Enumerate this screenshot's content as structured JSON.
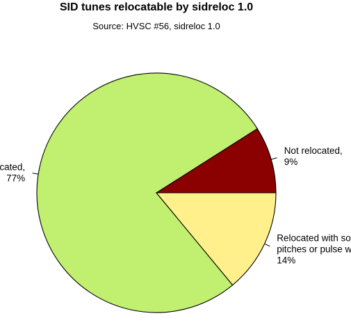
{
  "chart_data": {
    "type": "pie",
    "title": "SID tunes relocatable by sidreloc 1.0",
    "subtitle": "Source: HVSC #56, sidreloc 1.0",
    "slices": [
      {
        "label_lines": [
          "Not relocated,",
          "9%"
        ],
        "value": 9,
        "color": "#8b0000"
      },
      {
        "label_lines": [
          "Relocated,",
          "77%"
        ],
        "value": 77,
        "color": "#c1ef6f"
      },
      {
        "label_lines": [
          "Relocated with some bad",
          "pitches or pulse widths,",
          "14%"
        ],
        "value": 14,
        "color": "#fff08c"
      }
    ],
    "start_angle_deg": 0,
    "direction": "counterclockwise"
  }
}
